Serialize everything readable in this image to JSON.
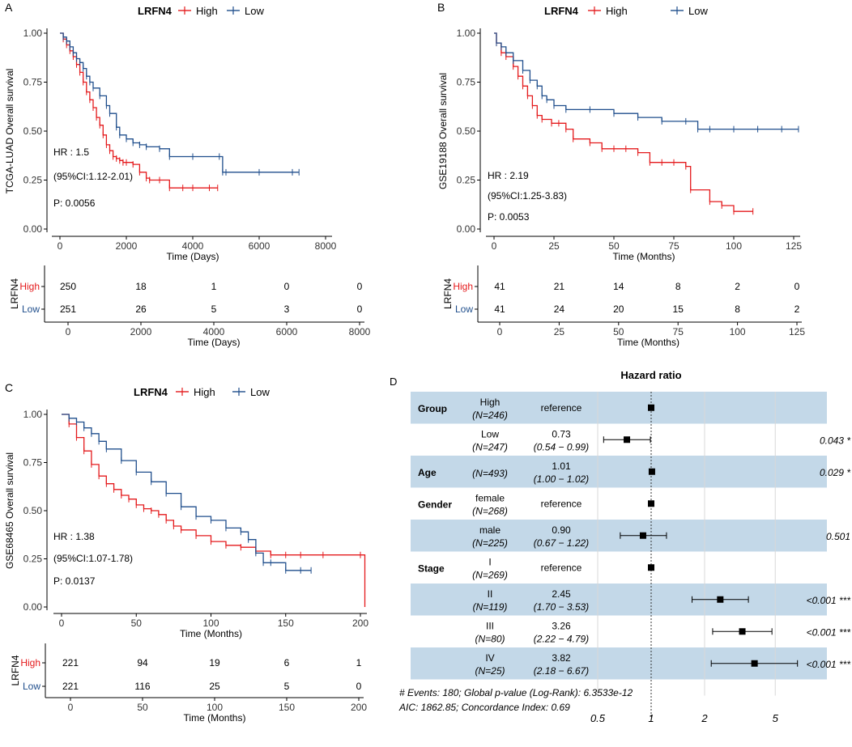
{
  "colors": {
    "high": "#E41A1C",
    "low": "#1F4E8C",
    "band": "#C3D8E8",
    "axis": "#000000"
  },
  "chart_data": [
    {
      "id": "A",
      "type": "line",
      "panel_label": "A",
      "legend": {
        "title": "LRFN4",
        "labels": [
          "High",
          "Low"
        ]
      },
      "ylabel": "TCGA-LUAD Overall survival",
      "xlabel": "Time (Days)",
      "xlim": [
        0,
        8000
      ],
      "ylim": [
        0,
        1
      ],
      "xticks": [
        0,
        2000,
        4000,
        6000,
        8000
      ],
      "yticks": [
        0,
        0.25,
        0.5,
        0.75,
        1
      ],
      "ytick_labels": [
        "0.00",
        "0.25",
        "0.50",
        "0.75",
        "1.00"
      ],
      "stats": [
        "HR : 1.5",
        "(95%CI:1.12-2.01)",
        "P: 0.0056"
      ],
      "series": [
        {
          "name": "High",
          "x": [
            0,
            100,
            200,
            300,
            400,
            500,
            600,
            700,
            800,
            900,
            1000,
            1100,
            1200,
            1300,
            1400,
            1500,
            1600,
            1700,
            1800,
            1900,
            2000,
            2200,
            2400,
            2600,
            2700,
            3000,
            3300,
            3700,
            4000,
            4500,
            4750
          ],
          "y": [
            1.0,
            0.97,
            0.94,
            0.91,
            0.88,
            0.84,
            0.8,
            0.75,
            0.7,
            0.66,
            0.62,
            0.57,
            0.53,
            0.48,
            0.43,
            0.4,
            0.37,
            0.36,
            0.35,
            0.34,
            0.34,
            0.33,
            0.29,
            0.26,
            0.25,
            0.25,
            0.21,
            0.21,
            0.21,
            0.21,
            0.21
          ]
        },
        {
          "name": "Low",
          "x": [
            0,
            100,
            200,
            300,
            400,
            500,
            600,
            700,
            800,
            900,
            1000,
            1200,
            1400,
            1500,
            1700,
            1800,
            2000,
            2200,
            2400,
            2600,
            3000,
            3300,
            4000,
            4800,
            4900,
            5000,
            6000,
            7000,
            7200
          ],
          "y": [
            1.0,
            0.98,
            0.96,
            0.93,
            0.9,
            0.87,
            0.85,
            0.82,
            0.78,
            0.75,
            0.72,
            0.68,
            0.63,
            0.59,
            0.52,
            0.48,
            0.46,
            0.44,
            0.43,
            0.42,
            0.41,
            0.37,
            0.37,
            0.37,
            0.29,
            0.29,
            0.29,
            0.29,
            0.29
          ]
        }
      ],
      "risk_table": {
        "ylabel": "LRFN4",
        "rows": [
          "High",
          "Low"
        ],
        "xticks": [
          0,
          2000,
          4000,
          6000,
          8000
        ],
        "xlabel": "Time (Days)",
        "values": [
          [
            "250",
            "18",
            "1",
            "0",
            "0"
          ],
          [
            "251",
            "26",
            "5",
            "3",
            "0"
          ]
        ]
      }
    },
    {
      "id": "B",
      "type": "line",
      "panel_label": "B",
      "legend": {
        "title": "LRFN4",
        "labels": [
          "High",
          "Low"
        ]
      },
      "ylabel": "GSE19188 Overall survival",
      "xlabel": "Time (Months)",
      "xlim": [
        0,
        125
      ],
      "ylim": [
        0,
        1
      ],
      "xticks": [
        0,
        25,
        50,
        75,
        100,
        125
      ],
      "yticks": [
        0,
        0.25,
        0.5,
        0.75,
        1
      ],
      "ytick_labels": [
        "0.00",
        "0.25",
        "0.50",
        "0.75",
        "1.00"
      ],
      "stats": [
        "HR : 2.19",
        "(95%CI:1.25-3.83)",
        "P: 0.0053"
      ],
      "series": [
        {
          "name": "High",
          "x": [
            0,
            1,
            3,
            5,
            8,
            10,
            12,
            14,
            16,
            18,
            20,
            24,
            27,
            30,
            33,
            40,
            45,
            50,
            55,
            60,
            65,
            70,
            75,
            80,
            82,
            90,
            95,
            100,
            108
          ],
          "y": [
            1.0,
            0.95,
            0.9,
            0.88,
            0.83,
            0.78,
            0.73,
            0.68,
            0.63,
            0.58,
            0.56,
            0.54,
            0.54,
            0.51,
            0.46,
            0.44,
            0.41,
            0.41,
            0.41,
            0.39,
            0.34,
            0.34,
            0.34,
            0.32,
            0.2,
            0.14,
            0.12,
            0.09,
            0.09
          ]
        },
        {
          "name": "Low",
          "x": [
            0,
            1,
            3,
            5,
            8,
            12,
            15,
            18,
            20,
            22,
            25,
            30,
            40,
            50,
            60,
            70,
            80,
            85,
            90,
            100,
            110,
            120,
            127
          ],
          "y": [
            1.0,
            0.95,
            0.93,
            0.9,
            0.86,
            0.81,
            0.76,
            0.73,
            0.68,
            0.66,
            0.63,
            0.61,
            0.61,
            0.59,
            0.57,
            0.55,
            0.55,
            0.51,
            0.51,
            0.51,
            0.51,
            0.51,
            0.51
          ]
        }
      ],
      "risk_table": {
        "ylabel": "LRFN4",
        "rows": [
          "High",
          "Low"
        ],
        "xticks": [
          0,
          25,
          50,
          75,
          100,
          125
        ],
        "xlabel": "Time (Months)",
        "values": [
          [
            "41",
            "21",
            "14",
            "8",
            "2",
            "0"
          ],
          [
            "41",
            "24",
            "20",
            "15",
            "8",
            "2"
          ]
        ]
      }
    },
    {
      "id": "C",
      "type": "line",
      "panel_label": "C",
      "legend": {
        "title": "LRFN4",
        "labels": [
          "High",
          "Low"
        ]
      },
      "ylabel": "GSE68465 Overall survival",
      "xlabel": "Time (Months)",
      "xlim": [
        0,
        200
      ],
      "ylim": [
        0,
        1
      ],
      "xticks": [
        0,
        50,
        100,
        150,
        200
      ],
      "yticks": [
        0,
        0.25,
        0.5,
        0.75,
        1
      ],
      "ytick_labels": [
        "0.00",
        "0.25",
        "0.50",
        "0.75",
        "1.00"
      ],
      "stats": [
        "HR : 1.38",
        "(95%CI:1.07-1.78)",
        "P: 0.0137"
      ],
      "series": [
        {
          "name": "High",
          "x": [
            0,
            5,
            10,
            15,
            20,
            25,
            30,
            35,
            40,
            45,
            50,
            55,
            60,
            65,
            70,
            75,
            80,
            90,
            100,
            110,
            120,
            130,
            140,
            150,
            160,
            175,
            200,
            203
          ],
          "y": [
            1.0,
            0.95,
            0.88,
            0.81,
            0.74,
            0.68,
            0.64,
            0.61,
            0.58,
            0.56,
            0.53,
            0.51,
            0.5,
            0.48,
            0.45,
            0.42,
            0.4,
            0.37,
            0.34,
            0.32,
            0.31,
            0.29,
            0.27,
            0.27,
            0.27,
            0.27,
            0.27,
            0.0
          ]
        },
        {
          "name": "Low",
          "x": [
            0,
            5,
            10,
            15,
            20,
            25,
            30,
            40,
            50,
            60,
            70,
            80,
            90,
            100,
            110,
            120,
            125,
            130,
            135,
            140,
            150,
            160,
            167
          ],
          "y": [
            1.0,
            0.98,
            0.96,
            0.93,
            0.9,
            0.86,
            0.82,
            0.76,
            0.7,
            0.65,
            0.59,
            0.52,
            0.47,
            0.45,
            0.41,
            0.39,
            0.35,
            0.28,
            0.23,
            0.23,
            0.19,
            0.19,
            0.19
          ]
        }
      ],
      "risk_table": {
        "ylabel": "LRFN4",
        "rows": [
          "High",
          "Low"
        ],
        "xticks": [
          0,
          50,
          100,
          150,
          200
        ],
        "xlabel": "Time (Months)",
        "values": [
          [
            "221",
            "94",
            "19",
            "6",
            "1"
          ],
          [
            "221",
            "116",
            "25",
            "5",
            "0"
          ]
        ]
      }
    },
    {
      "id": "D",
      "type": "forest",
      "panel_label": "D",
      "title": "Hazard ratio",
      "x_scale": "log",
      "xticks": [
        0.5,
        1,
        2,
        5
      ],
      "xtick_labels": [
        "0.5",
        "1",
        "2",
        "5"
      ],
      "rows": [
        {
          "variable": "Group",
          "level": "High",
          "n": "(N=246)",
          "est_text": "reference",
          "ci_text": "",
          "hr": 1,
          "lo": null,
          "hi": null,
          "p": "",
          "band": true
        },
        {
          "variable": "",
          "level": "Low",
          "n": "(N=247)",
          "est_text": "0.73",
          "ci_text": "(0.54 − 0.99)",
          "hr": 0.73,
          "lo": 0.54,
          "hi": 0.99,
          "p": "0.043 *",
          "band": false
        },
        {
          "variable": "Age",
          "level": "",
          "n": "(N=493)",
          "est_text": "1.01",
          "ci_text": "(1.00 − 1.02)",
          "hr": 1.01,
          "lo": 1.0,
          "hi": 1.02,
          "p": "0.029 *",
          "band": true
        },
        {
          "variable": "Gender",
          "level": "female",
          "n": "(N=268)",
          "est_text": "reference",
          "ci_text": "",
          "hr": 1,
          "lo": null,
          "hi": null,
          "p": "",
          "band": false
        },
        {
          "variable": "",
          "level": "male",
          "n": "(N=225)",
          "est_text": "0.90",
          "ci_text": "(0.67 − 1.22)",
          "hr": 0.9,
          "lo": 0.67,
          "hi": 1.22,
          "p": "0.501",
          "band": true
        },
        {
          "variable": "Stage",
          "level": "I",
          "n": "(N=269)",
          "est_text": "reference",
          "ci_text": "",
          "hr": 1,
          "lo": null,
          "hi": null,
          "p": "",
          "band": false
        },
        {
          "variable": "",
          "level": "II",
          "n": "(N=119)",
          "est_text": "2.45",
          "ci_text": "(1.70 − 3.53)",
          "hr": 2.45,
          "lo": 1.7,
          "hi": 3.53,
          "p": "<0.001 ***",
          "band": true
        },
        {
          "variable": "",
          "level": "III",
          "n": "(N=80)",
          "est_text": "3.26",
          "ci_text": "(2.22 − 4.79)",
          "hr": 3.26,
          "lo": 2.22,
          "hi": 4.79,
          "p": "<0.001 ***",
          "band": false
        },
        {
          "variable": "",
          "level": "IV",
          "n": "(N=25)",
          "est_text": "3.82",
          "ci_text": "(2.18 − 6.67)",
          "hr": 3.82,
          "lo": 2.18,
          "hi": 6.67,
          "p": "<0.001 ***",
          "band": true
        }
      ],
      "footer": [
        "# Events: 180; Global p-value (Log-Rank): 6.3533e-12",
        "AIC: 1862.85; Concordance Index: 0.69"
      ]
    }
  ]
}
